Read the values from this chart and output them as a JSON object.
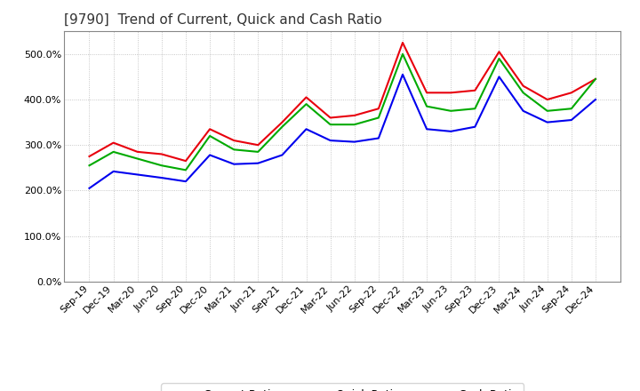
{
  "title": "[9790]  Trend of Current, Quick and Cash Ratio",
  "x_labels": [
    "Sep-19",
    "Dec-19",
    "Mar-20",
    "Jun-20",
    "Sep-20",
    "Dec-20",
    "Mar-21",
    "Jun-21",
    "Sep-21",
    "Dec-21",
    "Mar-22",
    "Jun-22",
    "Sep-22",
    "Dec-22",
    "Mar-23",
    "Jun-23",
    "Sep-23",
    "Dec-23",
    "Mar-24",
    "Jun-24",
    "Sep-24",
    "Dec-24"
  ],
  "current_ratio": [
    275,
    305,
    285,
    280,
    265,
    335,
    310,
    300,
    350,
    405,
    360,
    365,
    380,
    525,
    415,
    415,
    420,
    505,
    430,
    400,
    415,
    445
  ],
  "quick_ratio": [
    255,
    285,
    270,
    255,
    245,
    320,
    290,
    285,
    340,
    390,
    345,
    345,
    360,
    500,
    385,
    375,
    380,
    490,
    415,
    375,
    380,
    445
  ],
  "cash_ratio": [
    205,
    242,
    235,
    228,
    220,
    278,
    258,
    260,
    278,
    335,
    310,
    307,
    315,
    455,
    335,
    330,
    340,
    450,
    375,
    350,
    355,
    400
  ],
  "current_color": "#e8000d",
  "quick_color": "#00aa00",
  "cash_color": "#0000ee",
  "ylim": [
    0,
    550
  ],
  "ytick_vals": [
    0,
    100,
    200,
    300,
    400,
    500
  ],
  "grid_color": "#999999",
  "bg_color": "#ffffff",
  "plot_bg_color": "#ffffff",
  "title_fontsize": 11,
  "tick_fontsize": 8,
  "legend_labels": [
    "Current Ratio",
    "Quick Ratio",
    "Cash Ratio"
  ],
  "linewidth": 1.5
}
